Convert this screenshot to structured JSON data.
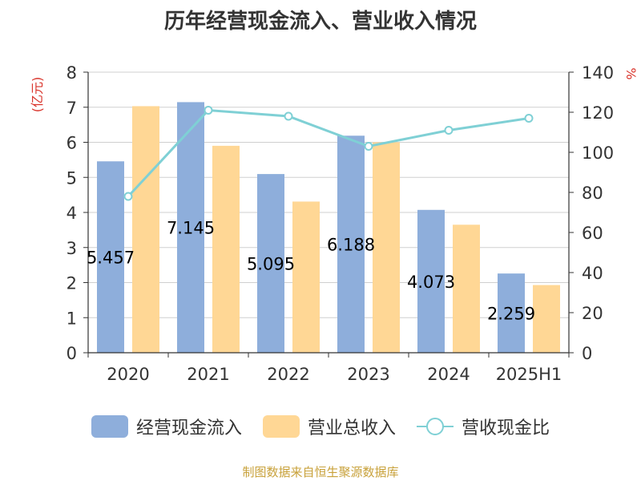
{
  "chart_data": {
    "type": "bar",
    "title": "历年经营现金流入、营业收入情况",
    "categories": [
      "2020",
      "2021",
      "2022",
      "2023",
      "2024",
      "2025H1"
    ],
    "y_left": {
      "label": "(亿元)",
      "min": 0,
      "max": 8,
      "step": 1
    },
    "y_right": {
      "label": "%",
      "min": 0,
      "max": 140,
      "step": 20
    },
    "grid": true,
    "legend_position": "bottom",
    "series": [
      {
        "name": "经营现金流入",
        "type": "bar",
        "axis": "left",
        "color": "#8eaedb",
        "values": [
          5.457,
          7.145,
          5.095,
          6.188,
          4.073,
          2.259
        ],
        "labels": [
          "5.457",
          "7.145",
          "5.095",
          "6.188",
          "4.073",
          "2.259"
        ]
      },
      {
        "name": "营业总收入",
        "type": "bar",
        "axis": "left",
        "color": "#ffd795",
        "values": [
          7.03,
          5.9,
          4.31,
          6.0,
          3.65,
          1.93
        ]
      },
      {
        "name": "营收现金比",
        "type": "line",
        "axis": "right",
        "color": "#7fd0d5",
        "values": [
          78,
          121,
          118,
          103,
          111,
          117
        ]
      }
    ]
  },
  "source_text": "制图数据来自恒生聚源数据库"
}
